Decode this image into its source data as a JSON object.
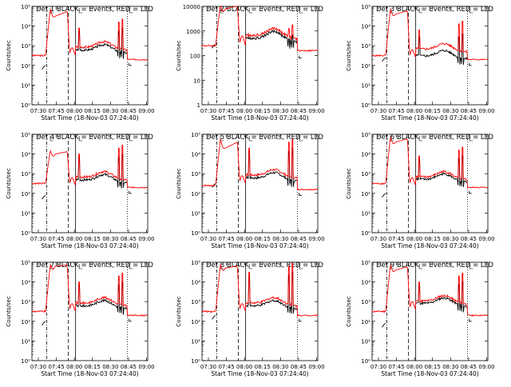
{
  "common": {
    "xlabel": "Start Time (18-Nov-03 07:24:40)",
    "ylabel": "Counts/sec",
    "x_ticks": [
      "07:30",
      "07:45",
      "08:00",
      "08:15",
      "08:30",
      "08:45",
      "09:00"
    ],
    "x_tick_minutes": [
      30,
      45,
      60,
      75,
      90,
      105,
      120
    ],
    "x_range_minutes": [
      24.7,
      121
    ],
    "y_range_log10": [
      0,
      5
    ],
    "y_ticks_log10": [
      0,
      1,
      2,
      3,
      4,
      5
    ],
    "colors": {
      "events": "#000000",
      "lld": "#ff0000",
      "axes": "#000000"
    }
  },
  "chart_data": [
    {
      "type": "line",
      "title": "Det  1  BLACK = Events, RED = LLD",
      "series": [
        {
          "name": "Events",
          "color": "#000000"
        },
        {
          "name": "LLD",
          "color": "#ff0000"
        }
      ],
      "ylim_log10": [
        0,
        5
      ],
      "y_tick_labels": [
        "10⁰",
        "10¹",
        "10²",
        "10³",
        "10⁴",
        "10⁵"
      ],
      "vlines_minutes": [
        {
          "t": 37,
          "style": "dashdot"
        },
        {
          "t": 55,
          "style": "dashed"
        },
        {
          "t": 61,
          "style": "solid"
        },
        {
          "t": 104,
          "style": "dotted"
        }
      ],
      "lld_level_log10": {
        "pre": 2.5,
        "plateau": 4.5,
        "peak": 4.9,
        "post": 2.7,
        "flare": 3.9
      },
      "events_offset_log10": -0.15,
      "pre_step_log10": 1.8
    },
    {
      "type": "line",
      "title": "Det  2  BLACK = Events, RED = LLD",
      "series": [
        {
          "name": "Events",
          "color": "#000000"
        },
        {
          "name": "LLD",
          "color": "#ff0000"
        }
      ],
      "ylim_log10": [
        0,
        4
      ],
      "y_tick_labels": [
        "1",
        "10",
        "100",
        "1000",
        "10000"
      ],
      "vlines_minutes": [
        {
          "t": 37,
          "style": "dashdot"
        },
        {
          "t": 55,
          "style": "dashed"
        },
        {
          "t": 61,
          "style": "solid"
        },
        {
          "t": 104,
          "style": "dotted"
        }
      ],
      "lld_level_log10": {
        "pre": 2.4,
        "plateau": 3.9,
        "peak": 4.1,
        "post": 2.6,
        "flare": 2.8
      },
      "events_offset_log10": -0.12,
      "pre_step_log10": 2.3
    },
    {
      "type": "line",
      "title": "Det  3  BLACK = Events, RED = LLD",
      "series": [
        {
          "name": "Events",
          "color": "#000000"
        },
        {
          "name": "LLD",
          "color": "#ff0000"
        }
      ],
      "ylim_log10": [
        0,
        5
      ],
      "y_tick_labels": [
        "10⁰",
        "10¹",
        "10²",
        "10³",
        "10⁴",
        "10⁵"
      ],
      "vlines_minutes": [
        {
          "t": 37,
          "style": "dashdot"
        },
        {
          "t": 55,
          "style": "dashed"
        },
        {
          "t": 61,
          "style": "solid"
        },
        {
          "t": 104,
          "style": "dotted"
        }
      ],
      "lld_level_log10": {
        "pre": 2.5,
        "plateau": 4.6,
        "peak": 4.9,
        "post": 2.6,
        "flare": 3.8
      },
      "events_offset_log10": -0.35,
      "pre_step_log10": 2.2
    },
    {
      "type": "line",
      "title": "Det  4  BLACK = Events, RED = LLD",
      "series": [
        {
          "name": "Events",
          "color": "#000000"
        },
        {
          "name": "LLD",
          "color": "#ff0000"
        }
      ],
      "ylim_log10": [
        0,
        5
      ],
      "y_tick_labels": [
        "10⁰",
        "10¹",
        "10²",
        "10³",
        "10⁴",
        "10⁵"
      ],
      "vlines_minutes": [
        {
          "t": 37,
          "style": "dashdot"
        },
        {
          "t": 55,
          "style": "dashed"
        },
        {
          "t": 61,
          "style": "solid"
        },
        {
          "t": 104,
          "style": "dotted"
        }
      ],
      "lld_level_log10": {
        "pre": 2.5,
        "plateau": 4.0,
        "peak": 4.2,
        "post": 2.6,
        "flare": 4.0
      },
      "events_offset_log10": -0.15,
      "pre_step_log10": 1.7
    },
    {
      "type": "line",
      "title": "Det  5  BLACK = Events, RED = LLD",
      "series": [
        {
          "name": "Events",
          "color": "#000000"
        },
        {
          "name": "LLD",
          "color": "#ff0000"
        }
      ],
      "ylim_log10": [
        0,
        5
      ],
      "y_tick_labels": [
        "10⁰",
        "10¹",
        "10²",
        "10³",
        "10⁴",
        "10⁵"
      ],
      "vlines_minutes": [
        {
          "t": 37,
          "style": "dashdot"
        },
        {
          "t": 55,
          "style": "dashed"
        },
        {
          "t": 61,
          "style": "solid"
        },
        {
          "t": 104,
          "style": "dotted"
        }
      ],
      "lld_level_log10": {
        "pre": 2.4,
        "plateau": 4.3,
        "peak": 4.8,
        "post": 2.7,
        "flare": 4.3
      },
      "events_offset_log10": -0.15,
      "pre_step_log10": 2.3
    },
    {
      "type": "line",
      "title": "Det  6  BLACK = Events, RED = LLD",
      "series": [
        {
          "name": "Events",
          "color": "#000000"
        },
        {
          "name": "LLD",
          "color": "#ff0000"
        }
      ],
      "ylim_log10": [
        0,
        5
      ],
      "y_tick_labels": [
        "10⁰",
        "10¹",
        "10²",
        "10³",
        "10⁴",
        "10⁵"
      ],
      "vlines_minutes": [
        {
          "t": 37,
          "style": "dashdot"
        },
        {
          "t": 55,
          "style": "dashed"
        },
        {
          "t": 61,
          "style": "solid"
        },
        {
          "t": 104,
          "style": "dotted"
        }
      ],
      "lld_level_log10": {
        "pre": 2.5,
        "plateau": 4.6,
        "peak": 4.9,
        "post": 2.6,
        "flare": 3.9
      },
      "events_offset_log10": -0.12,
      "pre_step_log10": 1.8
    },
    {
      "type": "line",
      "title": "Det  7  BLACK = Events, RED = LLD",
      "series": [
        {
          "name": "Events",
          "color": "#000000"
        },
        {
          "name": "LLD",
          "color": "#ff0000"
        }
      ],
      "ylim_log10": [
        0,
        5
      ],
      "y_tick_labels": [
        "10⁰",
        "10¹",
        "10²",
        "10³",
        "10⁴",
        "10⁵"
      ],
      "vlines_minutes": [
        {
          "t": 37,
          "style": "dashdot"
        },
        {
          "t": 55,
          "style": "dashed"
        },
        {
          "t": 61,
          "style": "solid"
        },
        {
          "t": 104,
          "style": "dotted"
        }
      ],
      "lld_level_log10": {
        "pre": 2.5,
        "plateau": 4.8,
        "peak": 4.9,
        "post": 2.7,
        "flare": 4.0
      },
      "events_offset_log10": -0.15,
      "pre_step_log10": 1.8
    },
    {
      "type": "line",
      "title": "Det  8  BLACK = Events, RED = LLD",
      "series": [
        {
          "name": "Events",
          "color": "#000000"
        },
        {
          "name": "LLD",
          "color": "#ff0000"
        }
      ],
      "ylim_log10": [
        0,
        5
      ],
      "y_tick_labels": [
        "10⁰",
        "10¹",
        "10²",
        "10³",
        "10⁴",
        "10⁵"
      ],
      "vlines_minutes": [
        {
          "t": 37,
          "style": "dashdot"
        },
        {
          "t": 55,
          "style": "dashed"
        },
        {
          "t": 61,
          "style": "solid"
        },
        {
          "t": 104,
          "style": "dotted"
        }
      ],
      "lld_level_log10": {
        "pre": 2.5,
        "plateau": 4.7,
        "peak": 4.9,
        "post": 2.7,
        "flare": 4.5
      },
      "events_offset_log10": -0.15,
      "pre_step_log10": 2.1
    },
    {
      "type": "line",
      "title": "Det  9  BLACK = Events, RED = LLD",
      "series": [
        {
          "name": "Events",
          "color": "#000000"
        },
        {
          "name": "LLD",
          "color": "#ff0000"
        }
      ],
      "ylim_log10": [
        0,
        5
      ],
      "y_tick_labels": [
        "10⁰",
        "10¹",
        "10²",
        "10³",
        "10⁴",
        "10⁵"
      ],
      "vlines_minutes": [
        {
          "t": 37,
          "style": "dashdot"
        },
        {
          "t": 55,
          "style": "dashed"
        },
        {
          "t": 61,
          "style": "solid"
        },
        {
          "t": 104,
          "style": "dotted"
        }
      ],
      "lld_level_log10": {
        "pre": 2.5,
        "plateau": 4.6,
        "peak": 4.9,
        "post": 2.8,
        "flare": 4.0
      },
      "events_offset_log10": -0.12,
      "pre_step_log10": 1.7
    }
  ]
}
